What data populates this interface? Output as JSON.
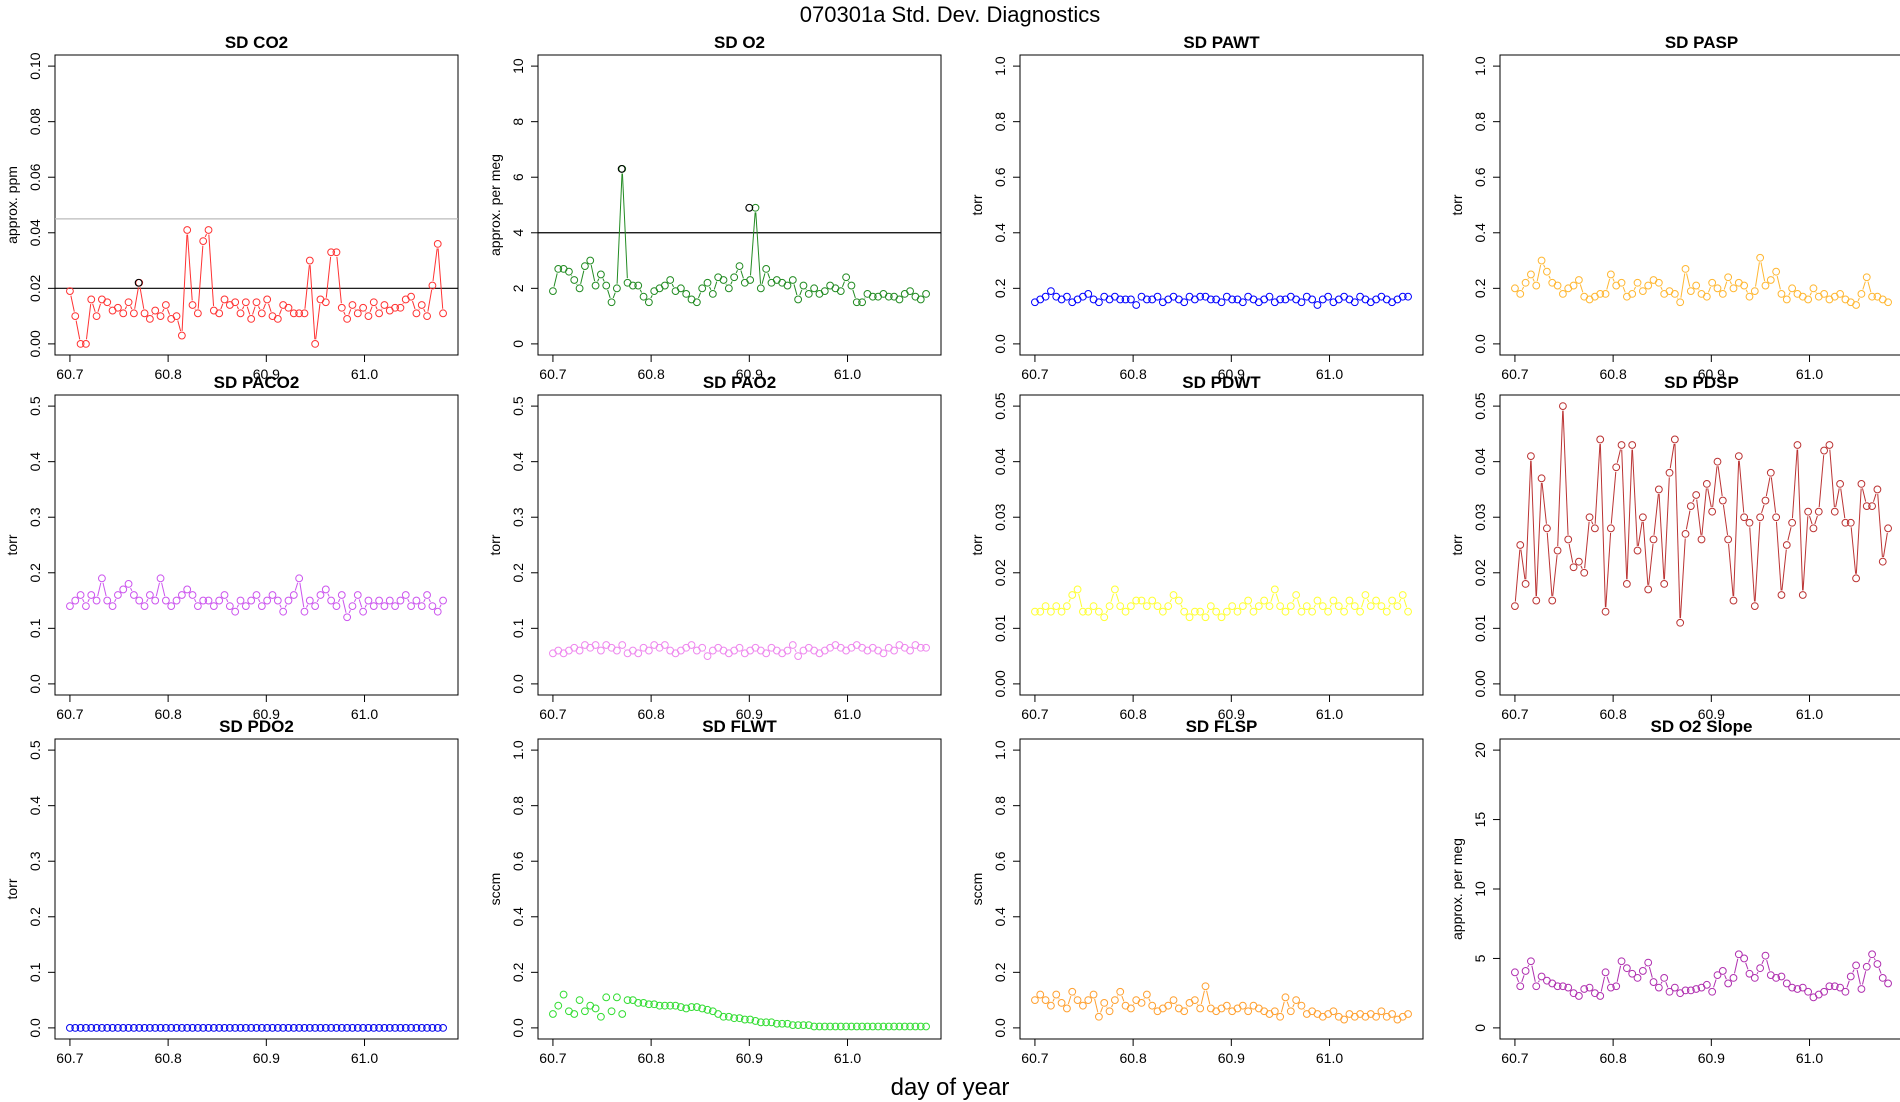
{
  "page": {
    "title": "070301a   Std. Dev. Diagnostics",
    "xlabel": "day of year"
  },
  "chart_data": [
    {
      "type": "line",
      "title": "SD CO2",
      "ylabel": "approx. ppm",
      "color": "#ff3333",
      "mode": "b",
      "xlim": [
        60.7,
        61.08
      ],
      "ylim": [
        0,
        0.1
      ],
      "xticks": [
        "60.7",
        "60.8",
        "60.9",
        "61.0"
      ],
      "yticks": [
        "0.00",
        "0.02",
        "0.04",
        "0.06",
        "0.08",
        "0.10"
      ],
      "hlines": [
        {
          "y": 0.02,
          "color": "#000000"
        },
        {
          "y": 0.045,
          "color": "#bbbbbb"
        }
      ],
      "highlight": [
        {
          "x": 60.77,
          "y": 0.022
        }
      ],
      "y": [
        0.019,
        0.01,
        0.0,
        0.0,
        0.016,
        0.01,
        0.016,
        0.015,
        0.012,
        0.013,
        0.011,
        0.015,
        0.011,
        0.022,
        0.011,
        0.009,
        0.012,
        0.01,
        0.014,
        0.009,
        0.01,
        0.003,
        0.041,
        0.014,
        0.011,
        0.037,
        0.041,
        0.012,
        0.011,
        0.016,
        0.014,
        0.015,
        0.011,
        0.015,
        0.009,
        0.015,
        0.011,
        0.016,
        0.01,
        0.009,
        0.014,
        0.013,
        0.011,
        0.011,
        0.011,
        0.03,
        0.0,
        0.016,
        0.015,
        0.033,
        0.033,
        0.013,
        0.009,
        0.014,
        0.011,
        0.013,
        0.01,
        0.015,
        0.011,
        0.014,
        0.012,
        0.013,
        0.013,
        0.016,
        0.017,
        0.011,
        0.014,
        0.01,
        0.021,
        0.036,
        0.011
      ]
    },
    {
      "type": "line",
      "title": "SD O2",
      "ylabel": "approx. per meg",
      "color": "#228b22",
      "mode": "b",
      "xlim": [
        60.7,
        61.08
      ],
      "ylim": [
        0,
        10
      ],
      "xticks": [
        "60.7",
        "60.8",
        "60.9",
        "61.0"
      ],
      "yticks": [
        "0",
        "2",
        "4",
        "6",
        "8",
        "10"
      ],
      "hlines": [
        {
          "y": 4,
          "color": "#000000"
        }
      ],
      "highlight": [
        {
          "x": 60.77,
          "y": 6.3
        },
        {
          "x": 60.9,
          "y": 4.9
        }
      ],
      "y": [
        1.9,
        2.7,
        2.7,
        2.6,
        2.3,
        2.0,
        2.8,
        3.0,
        2.1,
        2.5,
        2.1,
        1.5,
        2.0,
        6.3,
        2.2,
        2.1,
        2.1,
        1.7,
        1.5,
        1.9,
        2.0,
        2.1,
        2.3,
        1.9,
        2.0,
        1.8,
        1.6,
        1.5,
        2.0,
        2.2,
        1.8,
        2.4,
        2.3,
        2.0,
        2.4,
        2.8,
        2.2,
        2.3,
        4.9,
        2.0,
        2.7,
        2.2,
        2.3,
        2.2,
        2.1,
        2.3,
        1.6,
        2.1,
        1.8,
        2.0,
        1.8,
        1.9,
        2.1,
        2.0,
        1.9,
        2.4,
        2.1,
        1.5,
        1.5,
        1.8,
        1.7,
        1.7,
        1.8,
        1.7,
        1.7,
        1.6,
        1.8,
        1.9,
        1.7,
        1.6,
        1.8
      ]
    },
    {
      "type": "line",
      "title": "SD PAWT",
      "ylabel": "torr",
      "color": "#0000ff",
      "mode": "b",
      "xlim": [
        60.7,
        61.08
      ],
      "ylim": [
        0,
        1
      ],
      "xticks": [
        "60.7",
        "60.8",
        "60.9",
        "61.0"
      ],
      "yticks": [
        "0.0",
        "0.2",
        "0.4",
        "0.6",
        "0.8",
        "1.0"
      ],
      "y": [
        0.15,
        0.16,
        0.17,
        0.19,
        0.17,
        0.16,
        0.17,
        0.15,
        0.16,
        0.17,
        0.18,
        0.16,
        0.15,
        0.17,
        0.16,
        0.17,
        0.16,
        0.16,
        0.16,
        0.14,
        0.17,
        0.16,
        0.16,
        0.17,
        0.15,
        0.16,
        0.17,
        0.16,
        0.15,
        0.17,
        0.16,
        0.17,
        0.17,
        0.16,
        0.16,
        0.15,
        0.17,
        0.16,
        0.16,
        0.15,
        0.17,
        0.16,
        0.15,
        0.16,
        0.17,
        0.15,
        0.16,
        0.16,
        0.17,
        0.16,
        0.15,
        0.17,
        0.16,
        0.14,
        0.16,
        0.17,
        0.15,
        0.16,
        0.17,
        0.16,
        0.15,
        0.17,
        0.16,
        0.15,
        0.16,
        0.17,
        0.16,
        0.15,
        0.16,
        0.17,
        0.17
      ]
    },
    {
      "type": "line",
      "title": "SD PASP",
      "ylabel": "torr",
      "color": "#ffb732",
      "mode": "b",
      "xlim": [
        60.7,
        61.08
      ],
      "ylim": [
        0,
        1
      ],
      "xticks": [
        "60.7",
        "60.8",
        "60.9",
        "61.0"
      ],
      "yticks": [
        "0.0",
        "0.2",
        "0.4",
        "0.6",
        "0.8",
        "1.0"
      ],
      "y": [
        0.2,
        0.18,
        0.22,
        0.25,
        0.21,
        0.3,
        0.26,
        0.22,
        0.21,
        0.18,
        0.2,
        0.21,
        0.23,
        0.17,
        0.16,
        0.17,
        0.18,
        0.18,
        0.25,
        0.21,
        0.22,
        0.17,
        0.18,
        0.22,
        0.19,
        0.21,
        0.23,
        0.22,
        0.18,
        0.19,
        0.18,
        0.15,
        0.27,
        0.19,
        0.21,
        0.18,
        0.17,
        0.22,
        0.2,
        0.18,
        0.24,
        0.2,
        0.22,
        0.21,
        0.17,
        0.19,
        0.31,
        0.21,
        0.23,
        0.26,
        0.18,
        0.16,
        0.2,
        0.18,
        0.17,
        0.16,
        0.2,
        0.17,
        0.18,
        0.16,
        0.17,
        0.18,
        0.16,
        0.15,
        0.14,
        0.18,
        0.24,
        0.17,
        0.17,
        0.16,
        0.15
      ]
    },
    {
      "type": "line",
      "title": "SD PACO2",
      "ylabel": "torr",
      "color": "#cc55ee",
      "mode": "b",
      "xlim": [
        60.7,
        61.08
      ],
      "ylim": [
        0,
        0.5
      ],
      "xticks": [
        "60.7",
        "60.8",
        "60.9",
        "61.0"
      ],
      "yticks": [
        "0.0",
        "0.1",
        "0.2",
        "0.3",
        "0.4",
        "0.5"
      ],
      "y": [
        0.14,
        0.15,
        0.16,
        0.14,
        0.16,
        0.15,
        0.19,
        0.15,
        0.14,
        0.16,
        0.17,
        0.18,
        0.16,
        0.15,
        0.14,
        0.16,
        0.15,
        0.19,
        0.15,
        0.14,
        0.15,
        0.16,
        0.17,
        0.16,
        0.14,
        0.15,
        0.15,
        0.14,
        0.15,
        0.16,
        0.14,
        0.13,
        0.15,
        0.14,
        0.15,
        0.16,
        0.14,
        0.15,
        0.16,
        0.15,
        0.13,
        0.15,
        0.16,
        0.19,
        0.13,
        0.15,
        0.14,
        0.16,
        0.17,
        0.15,
        0.14,
        0.16,
        0.12,
        0.14,
        0.16,
        0.13,
        0.15,
        0.14,
        0.15,
        0.14,
        0.15,
        0.14,
        0.15,
        0.16,
        0.14,
        0.15,
        0.14,
        0.16,
        0.14,
        0.13,
        0.15
      ]
    },
    {
      "type": "line",
      "title": "SD PAO2",
      "ylabel": "torr",
      "color": "#ee88ee",
      "mode": "b",
      "xlim": [
        60.7,
        61.08
      ],
      "ylim": [
        0,
        0.5
      ],
      "xticks": [
        "60.7",
        "60.8",
        "60.9",
        "61.0"
      ],
      "yticks": [
        "0.0",
        "0.1",
        "0.2",
        "0.3",
        "0.4",
        "0.5"
      ],
      "y": [
        0.055,
        0.06,
        0.055,
        0.06,
        0.065,
        0.06,
        0.07,
        0.065,
        0.07,
        0.06,
        0.07,
        0.065,
        0.06,
        0.07,
        0.055,
        0.06,
        0.055,
        0.065,
        0.06,
        0.07,
        0.065,
        0.07,
        0.06,
        0.055,
        0.06,
        0.065,
        0.07,
        0.06,
        0.065,
        0.05,
        0.06,
        0.065,
        0.06,
        0.055,
        0.06,
        0.065,
        0.055,
        0.06,
        0.065,
        0.06,
        0.055,
        0.065,
        0.06,
        0.055,
        0.06,
        0.07,
        0.05,
        0.06,
        0.065,
        0.06,
        0.055,
        0.06,
        0.065,
        0.07,
        0.065,
        0.06,
        0.065,
        0.07,
        0.065,
        0.06,
        0.065,
        0.06,
        0.055,
        0.065,
        0.06,
        0.07,
        0.065,
        0.06,
        0.07,
        0.065,
        0.065
      ]
    },
    {
      "type": "line",
      "title": "SD PDWT",
      "ylabel": "torr",
      "color": "#ffff33",
      "mode": "b",
      "xlim": [
        60.7,
        61.08
      ],
      "ylim": [
        0,
        0.05
      ],
      "xticks": [
        "60.7",
        "60.8",
        "60.9",
        "61.0"
      ],
      "yticks": [
        "0.00",
        "0.01",
        "0.02",
        "0.03",
        "0.04",
        "0.05"
      ],
      "y": [
        0.013,
        0.013,
        0.014,
        0.013,
        0.014,
        0.013,
        0.014,
        0.016,
        0.017,
        0.013,
        0.013,
        0.014,
        0.013,
        0.012,
        0.014,
        0.017,
        0.014,
        0.013,
        0.014,
        0.015,
        0.015,
        0.014,
        0.015,
        0.014,
        0.013,
        0.014,
        0.016,
        0.015,
        0.013,
        0.012,
        0.013,
        0.013,
        0.012,
        0.014,
        0.013,
        0.012,
        0.013,
        0.014,
        0.013,
        0.014,
        0.015,
        0.013,
        0.014,
        0.015,
        0.014,
        0.017,
        0.014,
        0.013,
        0.014,
        0.016,
        0.013,
        0.014,
        0.013,
        0.015,
        0.014,
        0.013,
        0.015,
        0.014,
        0.013,
        0.015,
        0.014,
        0.013,
        0.016,
        0.014,
        0.015,
        0.014,
        0.013,
        0.015,
        0.014,
        0.016,
        0.013
      ]
    },
    {
      "type": "line",
      "title": "SD PDSP",
      "ylabel": "torr",
      "color": "#bb3333",
      "mode": "b",
      "xlim": [
        60.7,
        61.08
      ],
      "ylim": [
        0,
        0.05
      ],
      "xticks": [
        "60.7",
        "60.8",
        "60.9",
        "61.0"
      ],
      "yticks": [
        "0.00",
        "0.01",
        "0.02",
        "0.03",
        "0.04",
        "0.05"
      ],
      "y": [
        0.014,
        0.025,
        0.018,
        0.041,
        0.015,
        0.037,
        0.028,
        0.015,
        0.024,
        0.05,
        0.026,
        0.021,
        0.022,
        0.02,
        0.03,
        0.028,
        0.044,
        0.013,
        0.028,
        0.039,
        0.043,
        0.018,
        0.043,
        0.024,
        0.03,
        0.017,
        0.026,
        0.035,
        0.018,
        0.038,
        0.044,
        0.011,
        0.027,
        0.032,
        0.034,
        0.026,
        0.036,
        0.031,
        0.04,
        0.033,
        0.026,
        0.015,
        0.041,
        0.03,
        0.029,
        0.014,
        0.03,
        0.033,
        0.038,
        0.03,
        0.016,
        0.025,
        0.029,
        0.043,
        0.016,
        0.031,
        0.028,
        0.031,
        0.042,
        0.043,
        0.031,
        0.036,
        0.029,
        0.029,
        0.019,
        0.036,
        0.032,
        0.032,
        0.035,
        0.022,
        0.028
      ]
    },
    {
      "type": "line",
      "title": "SD PDO2",
      "ylabel": "torr",
      "color": "#0000ee",
      "mode": "p",
      "xlim": [
        60.7,
        61.08
      ],
      "ylim": [
        0,
        0.5
      ],
      "xticks": [
        "60.7",
        "60.8",
        "60.9",
        "61.0"
      ],
      "yticks": [
        "0.0",
        "0.1",
        "0.2",
        "0.3",
        "0.4",
        "0.5"
      ],
      "y": [
        0,
        0,
        0,
        0,
        0,
        0,
        0,
        0,
        0,
        0,
        0,
        0,
        0,
        0,
        0,
        0,
        0,
        0,
        0,
        0,
        0,
        0,
        0,
        0,
        0,
        0,
        0,
        0,
        0,
        0,
        0,
        0,
        0,
        0,
        0,
        0,
        0,
        0,
        0,
        0,
        0,
        0,
        0,
        0,
        0,
        0,
        0,
        0,
        0,
        0,
        0,
        0,
        0,
        0,
        0,
        0,
        0,
        0,
        0,
        0,
        0,
        0,
        0,
        0,
        0,
        0,
        0,
        0,
        0,
        0,
        0
      ]
    },
    {
      "type": "line",
      "title": "SD FLWT",
      "ylabel": "sccm",
      "color": "#33dd33",
      "mode": "p",
      "xlim": [
        60.7,
        61.08
      ],
      "ylim": [
        0,
        1
      ],
      "xticks": [
        "60.7",
        "60.8",
        "60.9",
        "61.0"
      ],
      "yticks": [
        "0.0",
        "0.2",
        "0.4",
        "0.6",
        "0.8",
        "1.0"
      ],
      "y": [
        0.05,
        0.08,
        0.12,
        0.06,
        0.05,
        0.1,
        0.06,
        0.08,
        0.07,
        0.04,
        0.11,
        0.06,
        0.11,
        0.05,
        0.1,
        0.1,
        0.09,
        0.09,
        0.085,
        0.085,
        0.08,
        0.08,
        0.08,
        0.08,
        0.075,
        0.07,
        0.075,
        0.075,
        0.07,
        0.065,
        0.06,
        0.05,
        0.04,
        0.04,
        0.035,
        0.035,
        0.03,
        0.03,
        0.025,
        0.02,
        0.02,
        0.02,
        0.015,
        0.015,
        0.015,
        0.01,
        0.01,
        0.01,
        0.01,
        0.005,
        0.005,
        0.005,
        0.005,
        0.005,
        0.005,
        0.005,
        0.005,
        0.005,
        0.005,
        0.005,
        0.005,
        0.005,
        0.005,
        0.005,
        0.005,
        0.005,
        0.005,
        0.005,
        0.005,
        0.005,
        0.005
      ]
    },
    {
      "type": "line",
      "title": "SD FLSP",
      "ylabel": "sccm",
      "color": "#ffa030",
      "mode": "b",
      "xlim": [
        60.7,
        61.08
      ],
      "ylim": [
        0,
        1
      ],
      "xticks": [
        "60.7",
        "60.8",
        "60.9",
        "61.0"
      ],
      "yticks": [
        "0.0",
        "0.2",
        "0.4",
        "0.6",
        "0.8",
        "1.0"
      ],
      "y": [
        0.1,
        0.12,
        0.1,
        0.08,
        0.12,
        0.09,
        0.07,
        0.13,
        0.1,
        0.08,
        0.1,
        0.12,
        0.04,
        0.09,
        0.06,
        0.1,
        0.13,
        0.08,
        0.07,
        0.1,
        0.09,
        0.12,
        0.08,
        0.06,
        0.07,
        0.08,
        0.1,
        0.07,
        0.06,
        0.09,
        0.1,
        0.07,
        0.15,
        0.07,
        0.06,
        0.07,
        0.08,
        0.06,
        0.07,
        0.08,
        0.06,
        0.08,
        0.07,
        0.06,
        0.05,
        0.06,
        0.04,
        0.11,
        0.06,
        0.1,
        0.08,
        0.05,
        0.06,
        0.05,
        0.04,
        0.05,
        0.06,
        0.04,
        0.03,
        0.05,
        0.04,
        0.05,
        0.04,
        0.05,
        0.04,
        0.06,
        0.04,
        0.05,
        0.03,
        0.04,
        0.05
      ]
    },
    {
      "type": "line",
      "title": "SD O2 Slope",
      "ylabel": "approx. per meg",
      "color": "#b030b0",
      "mode": "b",
      "xlim": [
        60.7,
        61.08
      ],
      "ylim": [
        0,
        20
      ],
      "xticks": [
        "60.7",
        "60.8",
        "60.9",
        "61.0"
      ],
      "yticks": [
        "0",
        "5",
        "10",
        "15",
        "20"
      ],
      "y": [
        4.0,
        3.0,
        4.1,
        4.8,
        3.0,
        3.7,
        3.4,
        3.2,
        3.0,
        3.0,
        2.9,
        2.5,
        2.3,
        2.8,
        2.9,
        2.5,
        2.3,
        4.0,
        2.9,
        3.0,
        4.8,
        4.3,
        3.9,
        3.6,
        4.1,
        4.7,
        3.3,
        2.9,
        3.6,
        2.6,
        2.9,
        2.5,
        2.7,
        2.7,
        2.8,
        2.9,
        3.1,
        2.6,
        3.8,
        4.1,
        3.2,
        3.6,
        5.3,
        5.0,
        3.9,
        3.6,
        4.3,
        5.2,
        3.8,
        3.6,
        3.7,
        3.2,
        2.9,
        2.8,
        2.9,
        2.6,
        2.2,
        2.4,
        2.6,
        3.0,
        3.0,
        2.9,
        2.6,
        3.7,
        4.5,
        2.8,
        4.4,
        5.3,
        4.6,
        3.6,
        3.2
      ]
    }
  ]
}
